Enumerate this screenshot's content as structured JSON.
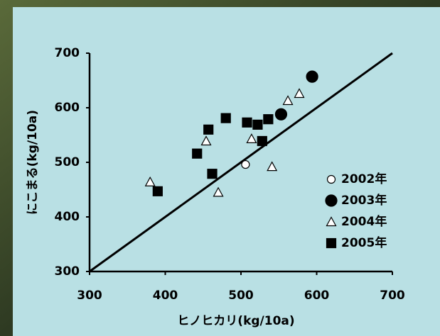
{
  "chart_data": {
    "type": "scatter",
    "x_label": "ヒノヒカリ(kg/10a)",
    "y_label": "にこまる(kg/10a)",
    "xlim": [
      300,
      700
    ],
    "xticks": [
      300,
      400,
      500,
      600,
      700
    ],
    "ylim": [
      300,
      700
    ],
    "yticks": [
      300,
      400,
      500,
      600,
      700
    ],
    "legend": "right",
    "series": [
      {
        "name": "2002年",
        "color": "#ffffff",
        "marker": "circle",
        "x": [
          506
        ],
        "values": [
          496
        ]
      },
      {
        "name": "2003年",
        "color": "#000000",
        "marker": "circle",
        "x": [
          553,
          594
        ],
        "values": [
          588,
          657
        ]
      },
      {
        "name": "2004年",
        "color": "#ffffff",
        "marker": "triangle",
        "x": [
          380,
          454,
          470,
          514,
          541,
          562,
          577
        ],
        "values": [
          464,
          539,
          445,
          543,
          492,
          613,
          626
        ]
      },
      {
        "name": "2005年",
        "color": "#000000",
        "marker": "square",
        "x": [
          390,
          442,
          457,
          462,
          480,
          508,
          522,
          528,
          536
        ],
        "values": [
          447,
          516,
          560,
          479,
          581,
          573,
          569,
          539,
          579
        ]
      }
    ]
  }
}
